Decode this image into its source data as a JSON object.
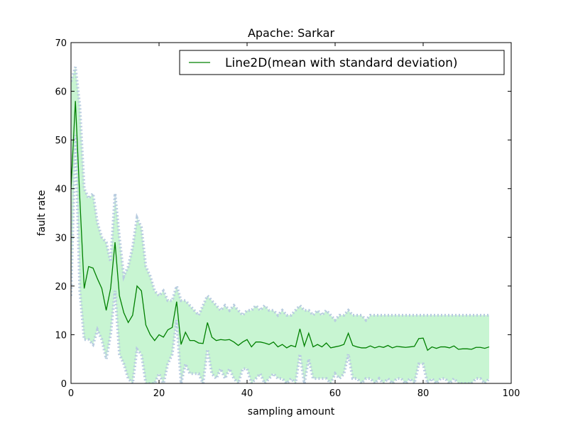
{
  "chart_data": {
    "type": "line",
    "title": "Apache: Sarkar",
    "xlabel": "sampling amount",
    "ylabel": "fault rate",
    "xlim": [
      0,
      100
    ],
    "ylim": [
      0,
      70
    ],
    "xticks": [
      0,
      20,
      40,
      60,
      80,
      100
    ],
    "yticks": [
      0,
      10,
      20,
      30,
      40,
      50,
      60,
      70
    ],
    "grid": false,
    "legend_position": "top-right",
    "series": [
      {
        "name": "Line2D(mean with standard deviation)",
        "color": "#008000",
        "x": [
          0,
          1,
          2,
          3,
          4,
          5,
          6,
          7,
          8,
          9,
          10,
          11,
          12,
          13,
          14,
          15,
          16,
          17,
          18,
          19,
          20,
          21,
          22,
          23,
          24,
          25,
          26,
          27,
          28,
          29,
          30,
          31,
          32,
          33,
          34,
          35,
          36,
          37,
          38,
          39,
          40,
          41,
          42,
          43,
          44,
          45,
          46,
          47,
          48,
          49,
          50,
          51,
          52,
          53,
          54,
          55,
          56,
          57,
          58,
          59,
          60,
          61,
          62,
          63,
          64,
          65,
          66,
          67,
          68,
          69,
          70,
          71,
          72,
          73,
          74,
          75,
          76,
          77,
          78,
          79,
          80,
          81,
          82,
          83,
          84,
          85,
          86,
          87,
          88,
          89,
          90,
          91,
          92,
          93,
          94,
          95
        ],
        "y": [
          40,
          58,
          38,
          19.5,
          24,
          23.7,
          21.5,
          19.5,
          15,
          19.5,
          29,
          18,
          14.5,
          12.5,
          14,
          20,
          19,
          12,
          10,
          8.8,
          10,
          9.5,
          11,
          11.5,
          16.8,
          8,
          10.5,
          8.8,
          8.8,
          8.3,
          8.2,
          12.5,
          9.5,
          8.8,
          9,
          8.9,
          9,
          8.5,
          7.8,
          8.5,
          9,
          7.5,
          8.5,
          8.5,
          8.3,
          8,
          8.5,
          7.5,
          8,
          7.3,
          7.8,
          7.5,
          11.2,
          7.7,
          10.3,
          7.5,
          8,
          7.5,
          8.3,
          7.3,
          7.5,
          7.7,
          8,
          10.3,
          7.8,
          7.5,
          7.3,
          7.3,
          7.7,
          7.3,
          7.6,
          7.4,
          7.8,
          7.3,
          7.6,
          7.5,
          7.4,
          7.5,
          7.6,
          9.2,
          9.3,
          6.8,
          7.5,
          7.2,
          7.5,
          7.5,
          7.3,
          7.7,
          7,
          7.1,
          7.1,
          7,
          7.4,
          7.4,
          7.2,
          7.5
        ],
        "upper": [
          62,
          65,
          57,
          40,
          38,
          39,
          33,
          30,
          29,
          25,
          39,
          30,
          22,
          24,
          28,
          34,
          32,
          24,
          22,
          19,
          18,
          19,
          17,
          17,
          20,
          17,
          17,
          16,
          15,
          14,
          16,
          18,
          17,
          16,
          15,
          16,
          15,
          16,
          15,
          14,
          15,
          15,
          16,
          15,
          16,
          15,
          15,
          14,
          15,
          14,
          14,
          15,
          16,
          15,
          15,
          14,
          15,
          14,
          15,
          14,
          13,
          14,
          14,
          15,
          14,
          14,
          14,
          13,
          14,
          14,
          14,
          14,
          14,
          14,
          14,
          14,
          14,
          14,
          14,
          14,
          14,
          14,
          14,
          14,
          14,
          14,
          14,
          14,
          14,
          14,
          14,
          14,
          14,
          14,
          14,
          14
        ],
        "lower": [
          18,
          51,
          19,
          9,
          9,
          8,
          11,
          9,
          5,
          10,
          19,
          6,
          4,
          1,
          0,
          7,
          6,
          0,
          0,
          0,
          2,
          0,
          4,
          6,
          13,
          0,
          4,
          2,
          2,
          2,
          0,
          7,
          2,
          1,
          3,
          1,
          3,
          1,
          0,
          3,
          3,
          0,
          1,
          2,
          0,
          1,
          2,
          1,
          1,
          0,
          1,
          0,
          6,
          0,
          5,
          1,
          1,
          1,
          1,
          0,
          2,
          1,
          2,
          6,
          1,
          1,
          0,
          1,
          1,
          0,
          1,
          0,
          1,
          0,
          1,
          1,
          0,
          1,
          0,
          4,
          4,
          0,
          1,
          0,
          1,
          1,
          0,
          1,
          0,
          0,
          0,
          0,
          1,
          1,
          0,
          1
        ]
      }
    ]
  }
}
